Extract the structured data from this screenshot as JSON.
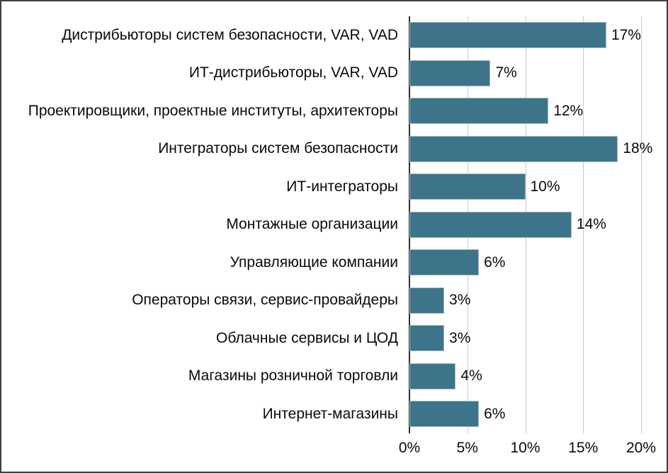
{
  "chart_data": {
    "type": "bar",
    "orientation": "horizontal",
    "title": "",
    "xlabel": "",
    "ylabel": "",
    "categories": [
      "Дистрибьюторы систем безопасности, VAR, VAD",
      "ИТ-дистрибьюторы, VAR, VAD",
      "Проектировщики, проектные институты, архитекторы",
      "Интеграторы систем безопасности",
      "ИТ-интеграторы",
      "Монтажные организации",
      "Управляющие компании",
      "Операторы связи, сервис-провайдеры",
      "Облачные сервисы и ЦОД",
      "Магазины розничной торговли",
      "Интернет-магазины"
    ],
    "values": [
      17,
      7,
      12,
      18,
      10,
      14,
      6,
      3,
      3,
      4,
      6
    ],
    "value_labels": [
      "17%",
      "7%",
      "12%",
      "18%",
      "10%",
      "14%",
      "6%",
      "3%",
      "3%",
      "4%",
      "6%"
    ],
    "xlim": [
      0,
      20
    ],
    "x_ticks": [
      0,
      5,
      10,
      15,
      20
    ],
    "x_tick_labels": [
      "0%",
      "5%",
      "10%",
      "15%",
      "20%"
    ],
    "grid": "vertical-only",
    "legend": "none",
    "colors": {
      "bar_fill": "#3E748A",
      "bar_edge": "#9FBCC8",
      "gridline": "#C9C9C9",
      "axis_line": "#303030",
      "text": "#0A0A0A",
      "background": "#FFFFFF",
      "frame_border": "#3F3F3F"
    }
  }
}
